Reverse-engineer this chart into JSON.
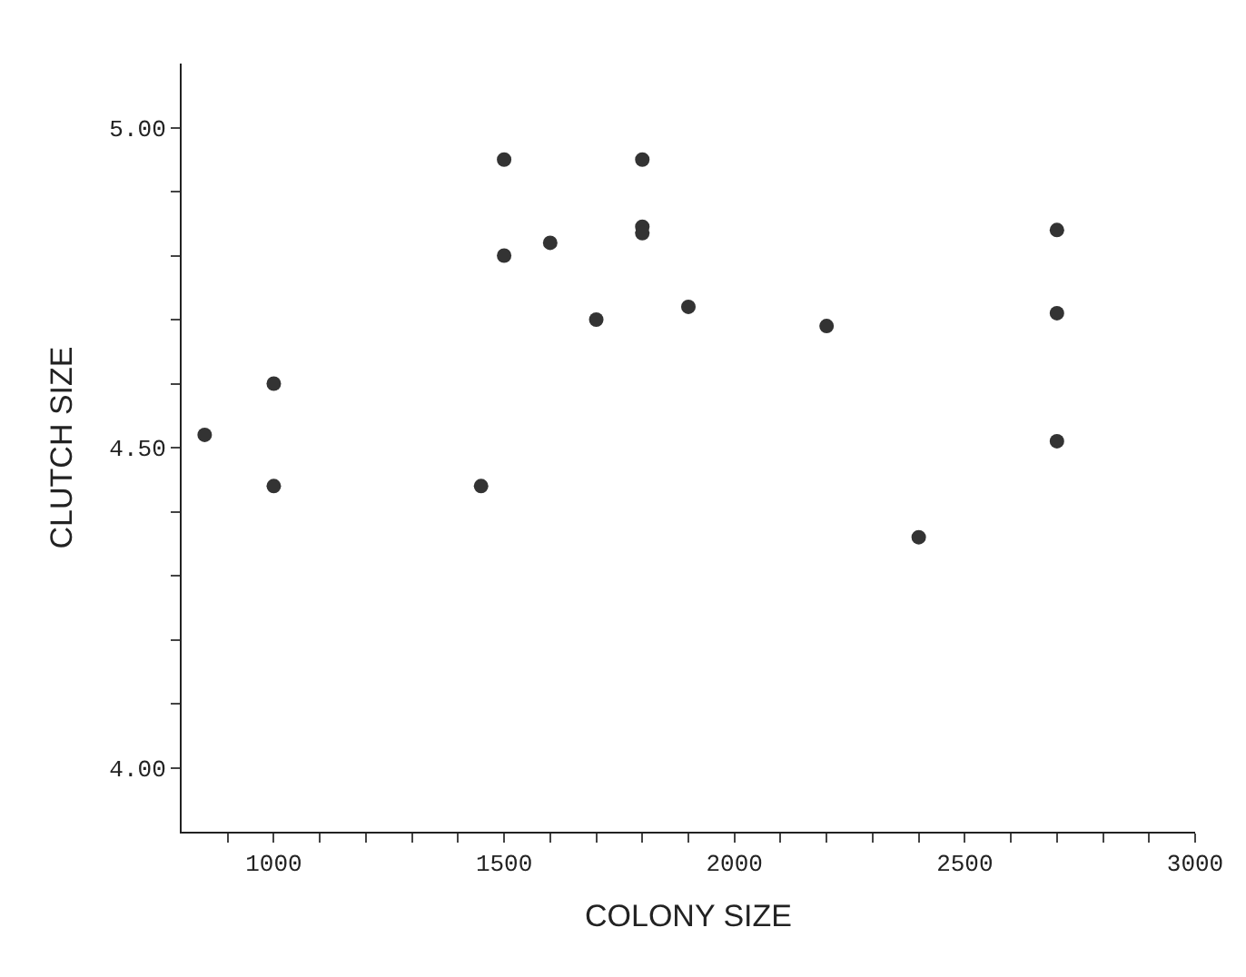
{
  "chart_data": {
    "type": "scatter",
    "xlabel": "COLONY SIZE",
    "ylabel": "CLUTCH SIZE",
    "marker": "circle",
    "legend": false,
    "x": [
      850,
      1000,
      1000,
      1450,
      1500,
      1500,
      1600,
      1700,
      1800,
      1800,
      1800,
      1900,
      2200,
      2400,
      2700,
      2700,
      2700
    ],
    "series": [
      {
        "color": "#333333",
        "values": [
          4.52,
          4.6,
          4.44,
          4.44,
          4.95,
          4.8,
          4.82,
          4.7,
          4.95,
          4.845,
          4.835,
          4.72,
          4.69,
          4.36,
          4.84,
          4.71,
          4.51
        ]
      }
    ],
    "xlim": [
      800,
      3000
    ],
    "ylim": [
      3.9,
      5.1
    ],
    "xticks": [
      {
        "value": 900,
        "label": null
      },
      1000,
      {
        "value": 1100,
        "label": null
      },
      {
        "value": 1200,
        "label": null
      },
      {
        "value": 1300,
        "label": null
      },
      {
        "value": 1400,
        "label": null
      },
      1500,
      {
        "value": 1600,
        "label": null
      },
      {
        "value": 1700,
        "label": null
      },
      {
        "value": 1800,
        "label": null
      },
      {
        "value": 1900,
        "label": null
      },
      2000,
      {
        "value": 2100,
        "label": null
      },
      {
        "value": 2200,
        "label": null
      },
      {
        "value": 2300,
        "label": null
      },
      {
        "value": 2400,
        "label": null
      },
      2500,
      {
        "value": 2600,
        "label": null
      },
      {
        "value": 2700,
        "label": null
      },
      {
        "value": 2800,
        "label": null
      },
      {
        "value": 2900,
        "label": null
      },
      3000
    ],
    "yticks": [
      {
        "value": 4.0,
        "label": "4.00"
      },
      {
        "value": 4.1,
        "label": null
      },
      {
        "value": 4.2,
        "label": null
      },
      {
        "value": 4.3,
        "label": null
      },
      {
        "value": 4.4,
        "label": null
      },
      {
        "value": 4.5,
        "label": "4.50"
      },
      {
        "value": 4.6,
        "label": null
      },
      {
        "value": 4.7,
        "label": null
      },
      {
        "value": 4.8,
        "label": null
      },
      {
        "value": 4.9,
        "label": null
      },
      {
        "value": 5.0,
        "label": "5.00"
      }
    ]
  }
}
